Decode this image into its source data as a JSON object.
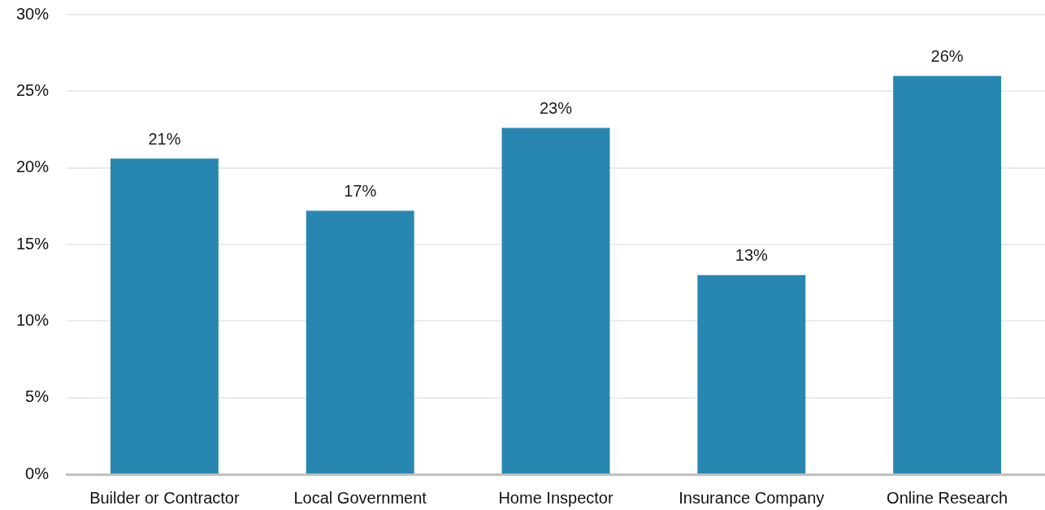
{
  "chart_data": {
    "type": "bar",
    "categories": [
      "Builder or Contractor",
      "Local Government",
      "Home Inspector",
      "Insurance Company",
      "Online Research"
    ],
    "values": [
      20.6,
      17.2,
      22.6,
      13,
      26
    ],
    "value_labels": [
      "21%",
      "17%",
      "23%",
      "13%",
      "26%"
    ],
    "color": "#2887b0",
    "ylim": [
      0,
      30
    ],
    "yticks": [
      {
        "value": 0,
        "label": "0%"
      },
      {
        "value": 5,
        "label": "5%"
      },
      {
        "value": 10,
        "label": "10%"
      },
      {
        "value": 15,
        "label": "15%"
      },
      {
        "value": 20,
        "label": "20%"
      },
      {
        "value": 25,
        "label": "25%"
      },
      {
        "value": 30,
        "label": "30%"
      }
    ],
    "grid": "y"
  }
}
